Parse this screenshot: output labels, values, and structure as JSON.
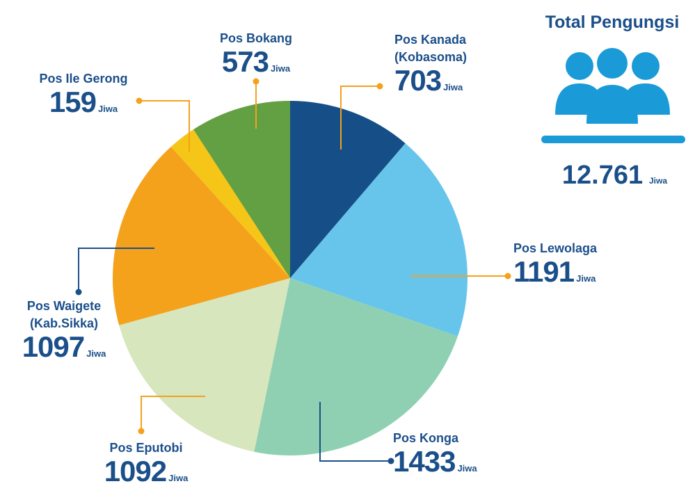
{
  "chart_data": {
    "type": "pie",
    "categories": [
      "Pos Kanada (Kobasoma)",
      "Pos Lewolaga",
      "Pos Konga",
      "Pos Eputobi",
      "Pos Waigete (Kab.Sikka)",
      "Pos Ile Gerong",
      "Pos Bokang"
    ],
    "values": [
      703,
      1191,
      1433,
      1092,
      1097,
      159,
      573
    ],
    "colors": [
      "#164f87",
      "#67c5ec",
      "#8fd0b2",
      "#d7e6bd",
      "#f4a11c",
      "#f5c518",
      "#62a043"
    ],
    "unit": "Jiwa"
  },
  "total": {
    "title": "Total Pengungsi",
    "value": "12.761",
    "unit": "Jiwa"
  }
}
